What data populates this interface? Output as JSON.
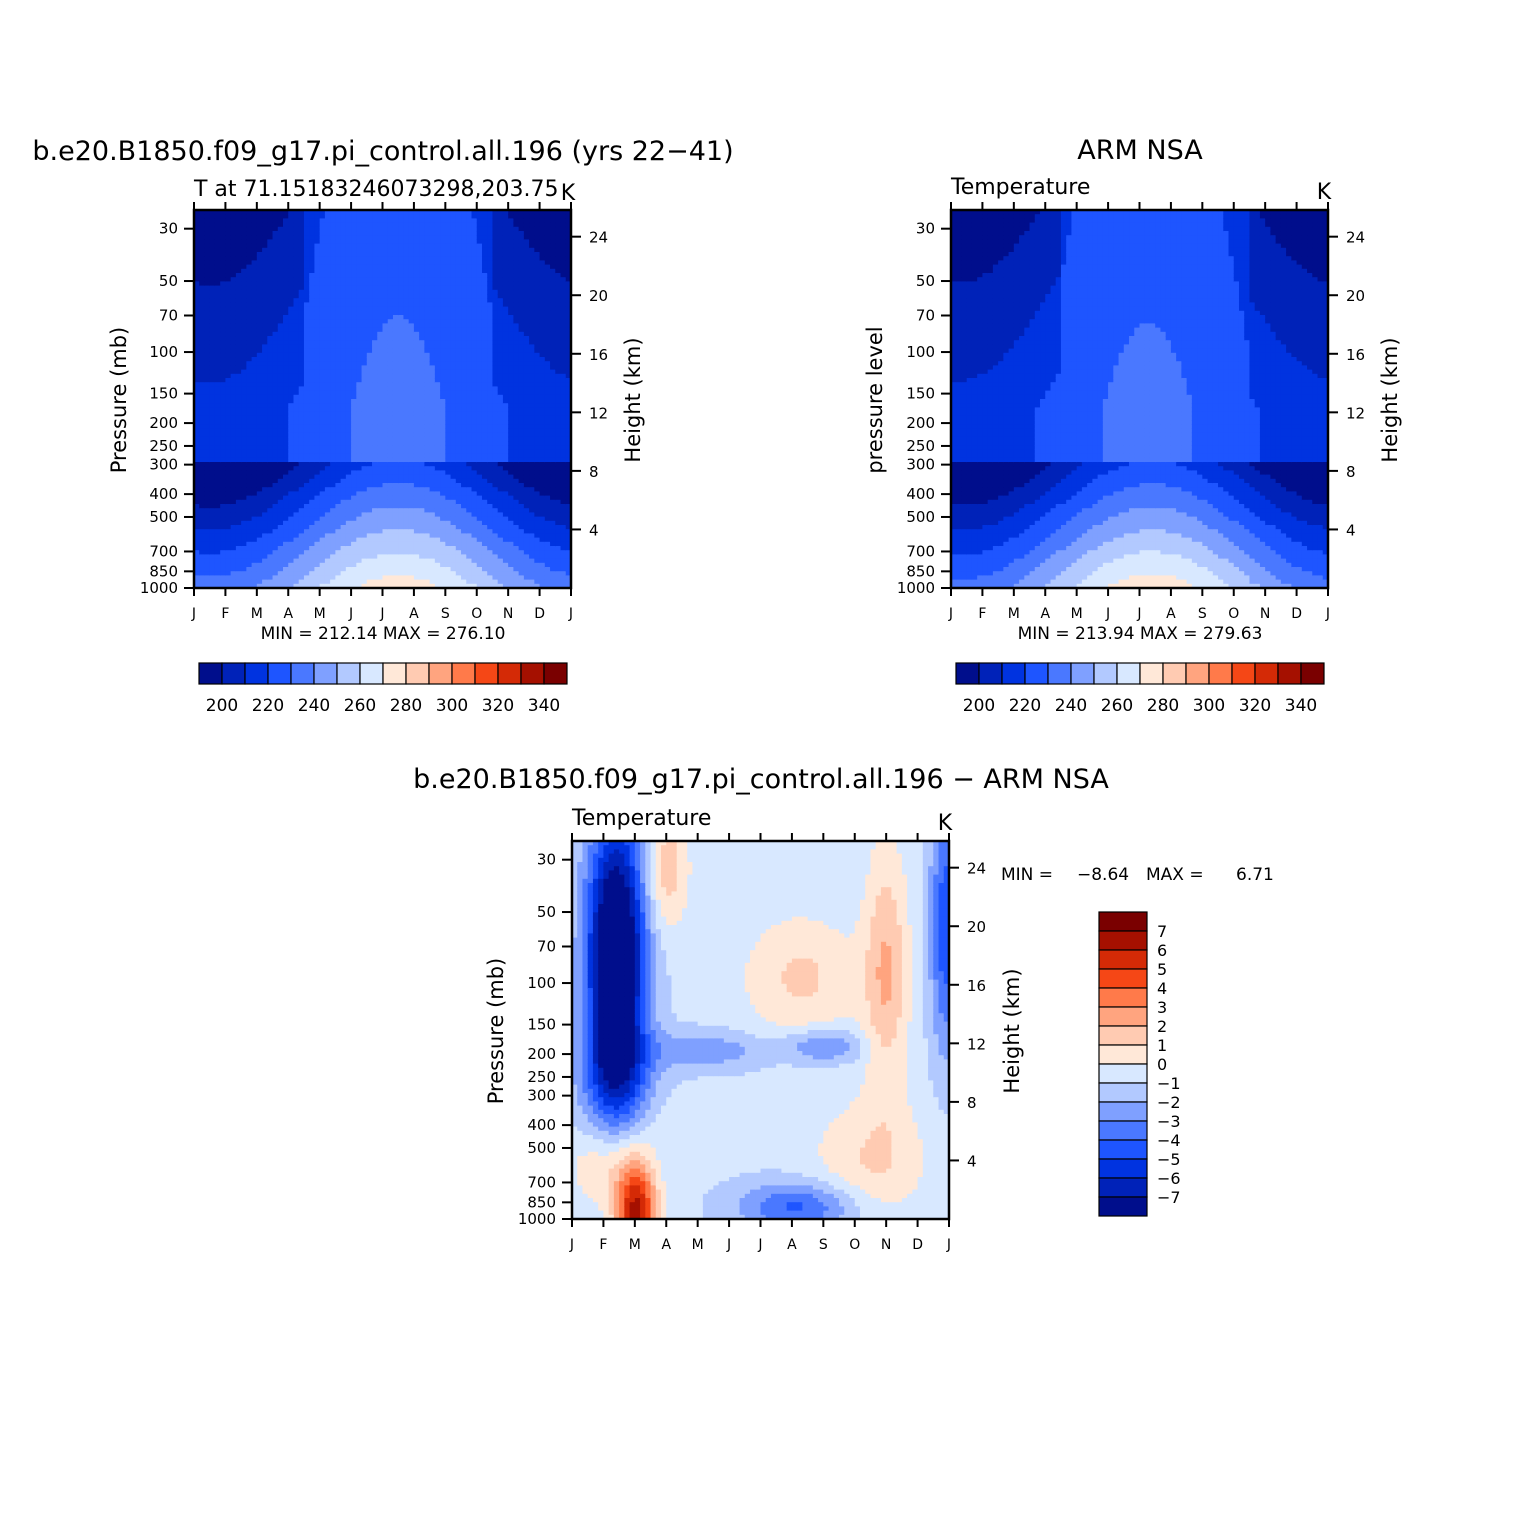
{
  "colors": {
    "abs_levels": [
      "#000e8c",
      "#0022b8",
      "#0033e0",
      "#1e55ff",
      "#4a78ff",
      "#7fa0ff",
      "#b2c9ff",
      "#d8e8ff",
      "#ffe8d8",
      "#ffcbb2",
      "#ffa47f",
      "#ff7a4a",
      "#f54716",
      "#d42a06",
      "#a51000",
      "#7a0000"
    ],
    "diff_levels": [
      "#000e8c",
      "#0022b8",
      "#0033e0",
      "#1e55ff",
      "#4a78ff",
      "#7fa0ff",
      "#b2c9ff",
      "#d8e8ff",
      "#ffe8d8",
      "#ffcbb2",
      "#ffa47f",
      "#ff7a4a",
      "#f54716",
      "#d42a06",
      "#a51000",
      "#7a0000"
    ]
  },
  "figure": {
    "panel1": {
      "title": "b.e20.B1850.f09_g17.pi_control.all.196 (yrs 22−41)",
      "left_string": "T at 71.15183246073298,203.75",
      "right_string": "K",
      "ylabel": "Pressure (mb)",
      "ylabel_right": "Height (km)",
      "minmax": "MIN = 212.14 MAX = 276.10"
    },
    "panel2": {
      "title": "ARM NSA",
      "left_string": "Temperature",
      "right_string": "K",
      "ylabel": "pressure level",
      "ylabel_right": "Height (km)",
      "minmax": "MIN = 213.94 MAX = 279.63"
    },
    "panel3": {
      "title": "b.e20.B1850.f09_g17.pi_control.all.196 − ARM NSA",
      "left_string": "Temperature",
      "right_string": "K",
      "ylabel": "Pressure (mb)",
      "ylabel_right": "Height (km)",
      "minmax_label_min": "MIN =",
      "minmax_value_min": "−8.64",
      "minmax_label_max": "MAX =",
      "minmax_value_max": "6.71"
    }
  },
  "chart_data": [
    {
      "type": "heatmap",
      "title": "b.e20.B1850.f09_g17.pi_control.all.196 (yrs 22−41)",
      "units": "K",
      "x_ticks": [
        "J",
        "F",
        "M",
        "A",
        "M",
        "J",
        "J",
        "A",
        "S",
        "O",
        "N",
        "D",
        "J"
      ],
      "y_ticks_pressure": [
        30,
        50,
        70,
        100,
        150,
        200,
        250,
        300,
        400,
        500,
        700,
        850,
        1000
      ],
      "y_ticks_height": [
        24,
        20,
        16,
        12,
        8,
        4
      ],
      "ylim_pressure": [
        1000,
        25
      ],
      "contour_levels": [
        200,
        210,
        220,
        230,
        240,
        250,
        260,
        270,
        280,
        290,
        300,
        310,
        320,
        330,
        340
      ],
      "colorbar_labels": [
        "200",
        "220",
        "240",
        "260",
        "280",
        "300",
        "320",
        "340"
      ],
      "min": 212.14,
      "max": 276.1
    },
    {
      "type": "heatmap",
      "title": "ARM NSA",
      "units": "K",
      "x_ticks": [
        "J",
        "F",
        "M",
        "A",
        "M",
        "J",
        "J",
        "A",
        "S",
        "O",
        "N",
        "D",
        "J"
      ],
      "y_ticks_pressure": [
        30,
        50,
        70,
        100,
        150,
        200,
        250,
        300,
        400,
        500,
        700,
        850,
        1000
      ],
      "y_ticks_height": [
        24,
        20,
        16,
        12,
        8,
        4
      ],
      "ylim_pressure": [
        1000,
        25
      ],
      "contour_levels": [
        200,
        210,
        220,
        230,
        240,
        250,
        260,
        270,
        280,
        290,
        300,
        310,
        320,
        330,
        340
      ],
      "colorbar_labels": [
        "200",
        "220",
        "240",
        "260",
        "280",
        "300",
        "320",
        "340"
      ],
      "min": 213.94,
      "max": 279.63
    },
    {
      "type": "heatmap",
      "title": "b.e20.B1850.f09_g17.pi_control.all.196 − ARM NSA",
      "units": "K",
      "x_ticks": [
        "J",
        "F",
        "M",
        "A",
        "M",
        "J",
        "J",
        "A",
        "S",
        "O",
        "N",
        "D",
        "J"
      ],
      "y_ticks_pressure": [
        30,
        50,
        70,
        100,
        150,
        200,
        250,
        300,
        400,
        500,
        700,
        850,
        1000
      ],
      "y_ticks_height": [
        24,
        20,
        16,
        12,
        8,
        4
      ],
      "ylim_pressure": [
        1000,
        25
      ],
      "contour_levels": [
        -7,
        -6,
        -5,
        -4,
        -3,
        -2,
        -1,
        0,
        1,
        2,
        3,
        4,
        5,
        6,
        7
      ],
      "colorbar_labels": [
        "7",
        "6",
        "5",
        "4",
        "3",
        "2",
        "1",
        "0",
        "−1",
        "−2",
        "−3",
        "−4",
        "−5",
        "−6",
        "−7"
      ],
      "min": -8.64,
      "max": 6.71
    }
  ]
}
